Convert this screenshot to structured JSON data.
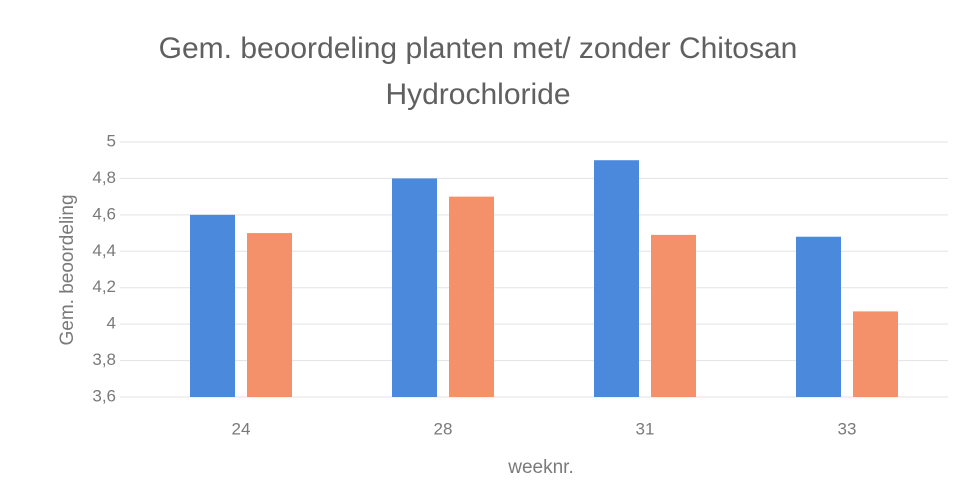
{
  "chart_data": {
    "type": "bar",
    "title": "Gem. beoordeling planten met/ zonder Chitosan Hydrochloride",
    "x_label": "weeknr.",
    "y_label": "Gem. beoordeling",
    "categories": [
      "24",
      "28",
      "31",
      "33"
    ],
    "series": [
      {
        "color": "#4a89dc",
        "values": [
          4.6,
          4.8,
          4.9,
          4.48
        ]
      },
      {
        "color": "#f4916a",
        "values": [
          4.5,
          4.7,
          4.49,
          4.07
        ]
      }
    ],
    "ylim": [
      3.6,
      5
    ],
    "yticks": [
      {
        "value": 3.6,
        "label": "3,6"
      },
      {
        "value": 3.8,
        "label": "3,8"
      },
      4,
      {
        "value": 4.2,
        "label": "4,2"
      },
      {
        "value": 4.4,
        "label": "4,4"
      },
      {
        "value": 4.6,
        "label": "4,6"
      },
      {
        "value": 4.8,
        "label": "4,8"
      },
      5
    ],
    "grid": true
  }
}
